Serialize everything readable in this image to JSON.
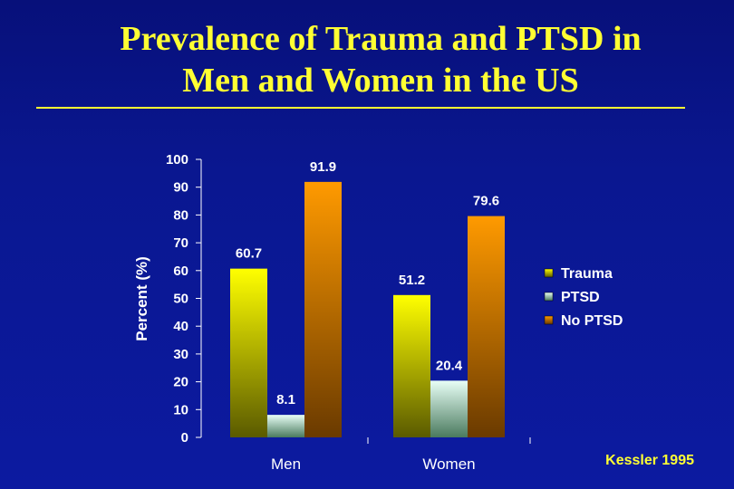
{
  "title_line1": "Prevalence of Trauma and PTSD in",
  "title_line2": "Men and Women in the US",
  "citation": "Kessler 1995",
  "colors": {
    "background": "#0a1790",
    "title": "#ffff33",
    "axis_text": "#ffffff"
  },
  "chart_data": {
    "type": "bar",
    "categories": [
      "Men",
      "Women"
    ],
    "series": [
      {
        "name": "Trauma",
        "values": [
          60.7,
          51.2
        ],
        "color_top": "#ffff00",
        "color_bottom": "#5a5a00"
      },
      {
        "name": "PTSD",
        "values": [
          8.1,
          20.4
        ],
        "color_top": "#e8fff6",
        "color_bottom": "#4a7a5e"
      },
      {
        "name": "No PTSD",
        "values": [
          91.9,
          79.6
        ],
        "color_top": "#ff9a00",
        "color_bottom": "#6a3a00"
      }
    ],
    "ylabel": "Percent (%)",
    "xlabel": "",
    "ylim": [
      0,
      100
    ],
    "yticks": [
      0,
      10,
      20,
      30,
      40,
      50,
      60,
      70,
      80,
      90,
      100
    ],
    "legend": "right",
    "grid": false
  }
}
